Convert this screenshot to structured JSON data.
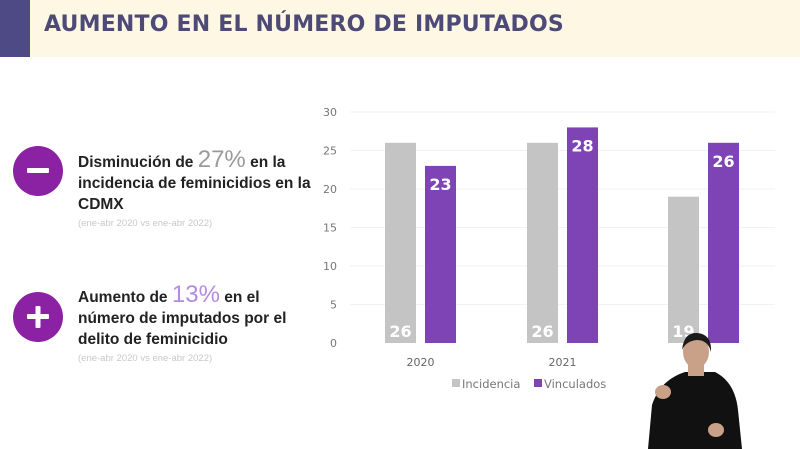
{
  "header": {
    "title": "AUMENTO EN EL NÚMERO DE IMPUTADOS"
  },
  "stats": [
    {
      "icon": "minus-icon",
      "prefix": "Disminución de ",
      "value": "27%",
      "value_color": "#9a9a9a",
      "suffix": " en la",
      "rest": "incidencia de feminicidios en la CDMX",
      "note": "(ene-abr 2020 vs ene-abr 2022)"
    },
    {
      "icon": "plus-icon",
      "prefix": "Aumento de ",
      "value": "13%",
      "value_color": "#b58ae0",
      "suffix": " en el",
      "rest": "número de imputados por el delito de feminicidio",
      "note": "(ene-abr 2020 vs ene-abr 2022)"
    }
  ],
  "chart_data": {
    "type": "bar",
    "categories": [
      "2020",
      "2021",
      ""
    ],
    "series": [
      {
        "name": "Incidencia",
        "values": [
          26,
          26,
          19
        ],
        "color": "#c4c4c4"
      },
      {
        "name": "Vinculados",
        "values": [
          23,
          28,
          26
        ],
        "color": "#7e44b5"
      }
    ],
    "yticks": [
      0,
      5,
      10,
      15,
      20,
      25,
      30
    ],
    "ylim": [
      0,
      30
    ],
    "grid": true,
    "legend": "bottom"
  },
  "overlay": {
    "interpreter": "sign-language-interpreter"
  }
}
